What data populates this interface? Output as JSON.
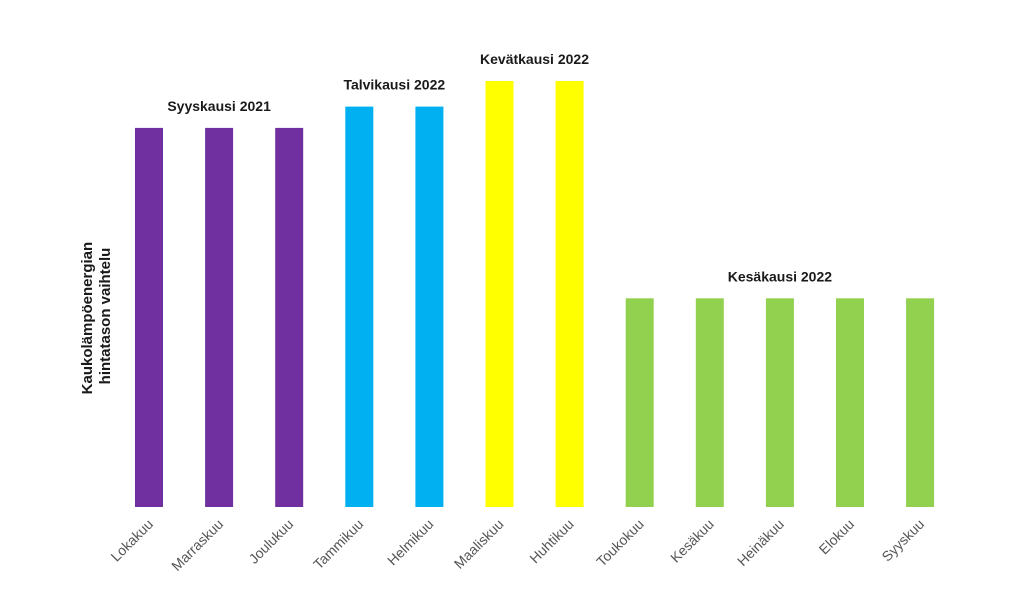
{
  "chart_data": {
    "type": "bar",
    "title": "",
    "xlabel": "",
    "ylabel_lines": [
      "Kaukolämpöenergian",
      "hintatason vaihtelu"
    ],
    "ylim": [
      0,
      100
    ],
    "categories": [
      "Lokakuu",
      "Marraskuu",
      "Joulukuu",
      "Tammikuu",
      "Helmikuu",
      "Maaliskuu",
      "Huhtikuu",
      "Toukokuu",
      "Kesäkuu",
      "Heinäkuu",
      "Elokuu",
      "Syyskuu"
    ],
    "values": [
      89,
      89,
      89,
      94,
      94,
      100,
      100,
      49,
      49,
      49,
      49,
      49
    ],
    "bar_groups": [
      0,
      0,
      0,
      1,
      1,
      2,
      2,
      3,
      3,
      3,
      3,
      3
    ],
    "groups": [
      {
        "label": "Syyskausi 2021",
        "color": "#7030a0"
      },
      {
        "label": "Talvikausi 2022",
        "color": "#00b0f0"
      },
      {
        "label": "Kevätkausi 2022",
        "color": "#ffff00"
      },
      {
        "label": "Kesäkausi 2022",
        "color": "#92d050"
      }
    ],
    "axes_visible": false,
    "grid": false,
    "legend": "none"
  }
}
